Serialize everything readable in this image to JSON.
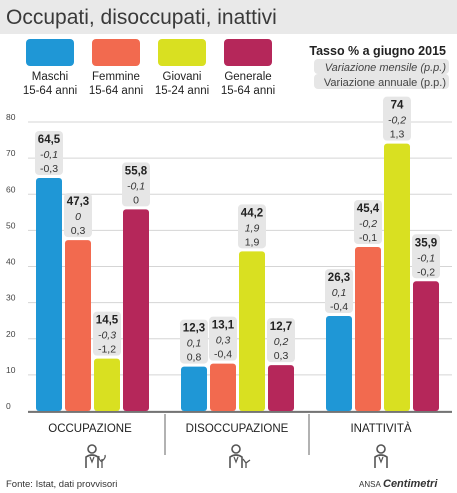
{
  "title": "Occupati, disoccupati, inattivi",
  "legend_box": {
    "title": "Tasso % a giugno 2015",
    "monthly_label": "Variazione mensile (p.p.)",
    "annual_label": "Variazione annuale (p.p.)"
  },
  "source": "Fonte: Istat, dati provvisori",
  "credit": {
    "ansa": "ANSA",
    "brand": "Centimetri"
  },
  "colors": {
    "maschi": "#1f97d6",
    "femmine": "#f26a4f",
    "giovani": "#d9e021",
    "generale": "#b5275a",
    "grid": "#d5d5d5",
    "label_bg": "#e6e6e6",
    "icon": "#555555"
  },
  "icons": [
    "worker-with-plant-icon",
    "worker-with-broken-plant-icon",
    "person-icon"
  ],
  "chart_data": {
    "type": "bar",
    "title": "Occupati, disoccupati, inattivi",
    "categories": [
      "OCCUPAZIONE",
      "DISOCCUPAZIONE",
      "INATTIVITÀ"
    ],
    "ylim": [
      0,
      80
    ],
    "yticks": [
      0,
      10,
      20,
      30,
      40,
      50,
      60,
      70,
      80
    ],
    "grid": true,
    "legend_position": "top",
    "series": [
      {
        "key": "maschi",
        "name": "Maschi",
        "subname": "15-64 anni",
        "values": [
          64.5,
          12.3,
          26.3
        ],
        "labels": [
          "64,5",
          "12,3",
          "26,3"
        ],
        "monthly": [
          "-0,1",
          "0,1",
          "0,1"
        ],
        "annual": [
          "-0,3",
          "0,8",
          "-0,4"
        ]
      },
      {
        "key": "femmine",
        "name": "Femmine",
        "subname": "15-64 anni",
        "values": [
          47.3,
          13.1,
          45.4
        ],
        "labels": [
          "47,3",
          "13,1",
          "45,4"
        ],
        "monthly": [
          "0",
          "0,3",
          "-0,2"
        ],
        "annual": [
          "0,3",
          "-0,4",
          "-0,1"
        ]
      },
      {
        "key": "giovani",
        "name": "Giovani",
        "subname": "15-24 anni",
        "values": [
          14.5,
          44.2,
          74
        ],
        "labels": [
          "14,5",
          "44,2",
          "74"
        ],
        "monthly": [
          "-0,3",
          "1,9",
          "-0,2"
        ],
        "annual": [
          "-1,2",
          "1,9",
          "1,3"
        ]
      },
      {
        "key": "generale",
        "name": "Generale",
        "subname": "15-64 anni",
        "values": [
          55.8,
          12.7,
          35.9
        ],
        "labels": [
          "55,8",
          "12,7",
          "35,9"
        ],
        "monthly": [
          "-0,1",
          "0,2",
          "-0,1"
        ],
        "annual": [
          "0",
          "0,3",
          "-0,2"
        ]
      }
    ]
  }
}
